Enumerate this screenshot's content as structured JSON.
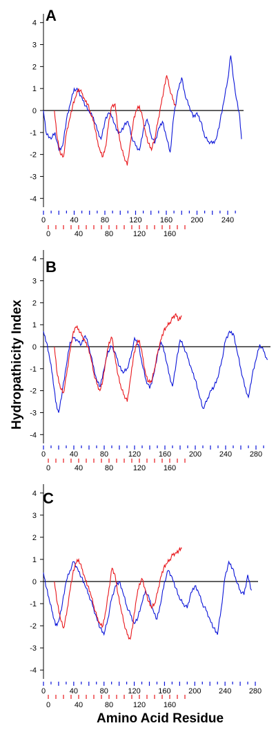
{
  "ylabel": "Hydropathicity Index",
  "xlabel": "Amino Acid Residue",
  "colors": {
    "blue": "#0a14d8",
    "red": "#e8161b",
    "axis": "#000000"
  },
  "chart_data": [
    {
      "type": "line",
      "panel_label": "A",
      "ylim": [
        -4.4,
        4.4
      ],
      "y_ticks": [
        4,
        3,
        2,
        1,
        0,
        -1,
        -2,
        -3,
        -4
      ],
      "blue_axis": {
        "range": [
          0,
          258
        ],
        "tick_labels": [
          0,
          40,
          80,
          120,
          160,
          200,
          240
        ],
        "tick_step": 10
      },
      "red_axis": {
        "range": [
          0,
          180
        ],
        "tick_labels": [
          0,
          40,
          80,
          120,
          160
        ],
        "tick_step": 10
      },
      "series": [
        {
          "color_key": "blue",
          "x": [
            0,
            4,
            10,
            15,
            20,
            25,
            30,
            35,
            40,
            45,
            50,
            55,
            60,
            65,
            70,
            75,
            80,
            85,
            90,
            95,
            100,
            105,
            110,
            115,
            120,
            125,
            130,
            135,
            140,
            145,
            150,
            155,
            160,
            165,
            170,
            175,
            180,
            185,
            190,
            195,
            200,
            205,
            210,
            215,
            220,
            225,
            230,
            235,
            240,
            244,
            250,
            255,
            258
          ],
          "values": [
            0,
            -1.1,
            -1.3,
            -1.0,
            -1.8,
            -1.6,
            -0.4,
            0.3,
            1.0,
            0.9,
            0.6,
            0.2,
            -0.1,
            -0.3,
            -0.9,
            -1.3,
            -0.5,
            -0.1,
            -0.3,
            -0.9,
            -1.0,
            -0.7,
            -0.5,
            -1.2,
            -1.6,
            -1.8,
            -0.9,
            -0.4,
            -1.1,
            -1.5,
            -0.8,
            -0.5,
            -1.2,
            -1.9,
            -0.2,
            0.9,
            1.5,
            0.6,
            0.2,
            -0.3,
            -0.1,
            -0.5,
            -1.2,
            -1.4,
            -1.5,
            -1.3,
            -0.5,
            0.4,
            1.4,
            2.5,
            0.8,
            -0.1,
            -1.3
          ]
        },
        {
          "color_key": "red",
          "x": [
            8,
            12,
            16,
            20,
            24,
            28,
            32,
            36,
            40,
            44,
            48,
            52,
            56,
            60,
            64,
            68,
            72,
            76,
            80,
            84,
            88,
            92,
            96,
            100,
            104,
            108,
            112,
            116,
            120,
            124,
            128,
            132,
            136,
            140,
            144,
            148,
            152,
            156,
            160,
            164,
            168
          ],
          "values": [
            0,
            -1.3,
            -2.0,
            -2.1,
            -1.0,
            -0.4,
            0.2,
            0.6,
            1.0,
            0.8,
            0.5,
            0.3,
            -0.2,
            -0.5,
            -1.3,
            -1.8,
            -2.1,
            -1.6,
            -0.4,
            0.2,
            0.3,
            -0.9,
            -1.7,
            -2.1,
            -2.5,
            -1.5,
            -0.5,
            0.0,
            0.2,
            -0.3,
            -1.0,
            -1.5,
            -1.8,
            -1.3,
            -0.6,
            0.2,
            0.9,
            1.6,
            1.0,
            0.5,
            0.2
          ]
        }
      ]
    },
    {
      "type": "line",
      "panel_label": "B",
      "ylim": [
        -4.4,
        4.4
      ],
      "y_ticks": [
        4,
        3,
        2,
        1,
        0,
        -1,
        -2,
        -3,
        -4
      ],
      "blue_axis": {
        "range": [
          0,
          295
        ],
        "tick_labels": [
          0,
          40,
          80,
          120,
          160,
          200,
          240,
          280
        ],
        "tick_step": 10
      },
      "red_axis": {
        "range": [
          0,
          180
        ],
        "tick_labels": [
          0,
          40,
          80,
          120,
          160
        ],
        "tick_step": 10
      },
      "series": [
        {
          "color_key": "blue",
          "x": [
            0,
            4,
            8,
            12,
            16,
            20,
            25,
            30,
            35,
            40,
            45,
            50,
            55,
            60,
            65,
            70,
            75,
            80,
            85,
            90,
            95,
            100,
            105,
            110,
            115,
            120,
            125,
            130,
            135,
            140,
            145,
            150,
            155,
            160,
            165,
            170,
            175,
            180,
            185,
            190,
            195,
            200,
            205,
            210,
            215,
            220,
            225,
            230,
            235,
            240,
            245,
            250,
            255,
            260,
            265,
            270,
            275,
            280,
            285,
            290,
            295
          ],
          "values": [
            0.7,
            0.2,
            -0.5,
            -1.3,
            -2.5,
            -3.0,
            -2.0,
            -0.9,
            0.2,
            0.4,
            0.3,
            0.1,
            0.5,
            0.0,
            -0.8,
            -1.5,
            -1.8,
            -1.0,
            -0.2,
            0.0,
            -0.3,
            -0.9,
            -1.2,
            -1.0,
            -0.5,
            0.4,
            0.1,
            -0.8,
            -1.5,
            -1.9,
            -1.3,
            -0.4,
            0.2,
            -0.3,
            -1.2,
            -1.8,
            -0.7,
            0.3,
            0.0,
            -0.5,
            -1.0,
            -1.5,
            -2.2,
            -2.8,
            -2.5,
            -2.0,
            -1.8,
            -1.4,
            -0.6,
            0.3,
            0.7,
            0.6,
            -0.2,
            -1.0,
            -1.8,
            -2.3,
            -1.3,
            -0.6,
            0.1,
            -0.2,
            -0.6
          ]
        },
        {
          "color_key": "red",
          "x": [
            8,
            12,
            16,
            20,
            24,
            28,
            32,
            36,
            40,
            44,
            48,
            52,
            56,
            60,
            64,
            68,
            72,
            76,
            80,
            84,
            88,
            92,
            96,
            100,
            104,
            108,
            112,
            116,
            120,
            124,
            128,
            132,
            136,
            140,
            144,
            148,
            152,
            156,
            160,
            164,
            168,
            172,
            176
          ],
          "values": [
            0,
            -1.3,
            -1.9,
            -2.1,
            -1.3,
            -0.3,
            0.5,
            0.9,
            0.8,
            0.5,
            0.3,
            0.0,
            -0.5,
            -1.2,
            -1.7,
            -2.0,
            -1.5,
            -0.6,
            0.2,
            0.4,
            -0.5,
            -1.3,
            -1.9,
            -2.2,
            -2.5,
            -1.5,
            -0.5,
            0.1,
            0.3,
            -0.4,
            -1.2,
            -1.6,
            -1.6,
            -1.0,
            -0.3,
            0.3,
            0.7,
            0.9,
            1.1,
            1.3,
            1.5,
            1.2,
            1.4
          ]
        }
      ]
    },
    {
      "type": "line",
      "panel_label": "C",
      "ylim": [
        -4.4,
        4.4
      ],
      "y_ticks": [
        4,
        3,
        2,
        1,
        0,
        -1,
        -2,
        -3,
        -4
      ],
      "blue_axis": {
        "range": [
          0,
          280
        ],
        "tick_labels": [
          0,
          40,
          80,
          120,
          160,
          200,
          240,
          280
        ],
        "tick_step": 10
      },
      "red_axis": {
        "range": [
          0,
          180
        ],
        "tick_labels": [
          0,
          40,
          80,
          120,
          160
        ],
        "tick_step": 10
      },
      "series": [
        {
          "color_key": "blue",
          "x": [
            0,
            4,
            8,
            12,
            16,
            20,
            25,
            30,
            35,
            40,
            45,
            50,
            55,
            60,
            65,
            70,
            75,
            80,
            85,
            90,
            95,
            100,
            105,
            110,
            115,
            120,
            125,
            130,
            135,
            140,
            145,
            150,
            155,
            160,
            165,
            170,
            175,
            180,
            185,
            190,
            195,
            200,
            205,
            210,
            215,
            220,
            225,
            230,
            235,
            240,
            245,
            250,
            255,
            260,
            265,
            270,
            275
          ],
          "values": [
            0.4,
            -0.3,
            -0.9,
            -1.4,
            -2.0,
            -1.8,
            -1.0,
            0.0,
            0.5,
            0.9,
            0.6,
            0.2,
            -0.2,
            -0.6,
            -1.1,
            -1.6,
            -2.1,
            -2.4,
            -1.7,
            -0.8,
            -0.2,
            0.0,
            -0.5,
            -1.1,
            -1.5,
            -1.9,
            -1.6,
            -1.0,
            -0.4,
            -0.8,
            -1.3,
            -1.7,
            -1.0,
            0.0,
            0.5,
            0.2,
            -0.3,
            -0.8,
            -1.0,
            -1.2,
            -0.5,
            -0.2,
            -0.5,
            -1.0,
            -1.3,
            -1.7,
            -2.1,
            -2.4,
            -1.2,
            0.2,
            0.9,
            0.6,
            0.0,
            -0.4,
            -0.6,
            0.3,
            -0.4
          ]
        },
        {
          "color_key": "red",
          "x": [
            8,
            12,
            16,
            20,
            24,
            28,
            32,
            36,
            40,
            44,
            48,
            52,
            56,
            60,
            64,
            68,
            72,
            76,
            80,
            84,
            88,
            92,
            96,
            100,
            104,
            108,
            112,
            116,
            120,
            124,
            128,
            132,
            136,
            140,
            144,
            148,
            152,
            156,
            160,
            164,
            168,
            172,
            176
          ],
          "values": [
            0,
            -1.0,
            -1.7,
            -2.1,
            -1.5,
            -0.5,
            0.3,
            0.8,
            1.0,
            0.6,
            0.2,
            -0.2,
            -0.6,
            -1.1,
            -1.6,
            -1.9,
            -2.0,
            -1.3,
            -0.3,
            0.6,
            0.3,
            -0.6,
            -1.3,
            -1.9,
            -2.4,
            -2.6,
            -1.8,
            -0.8,
            -0.1,
            0.1,
            -0.4,
            -0.9,
            -1.2,
            -1.0,
            -0.5,
            0.2,
            0.6,
            0.8,
            1.0,
            1.2,
            1.3,
            1.4,
            1.5
          ]
        }
      ]
    }
  ]
}
